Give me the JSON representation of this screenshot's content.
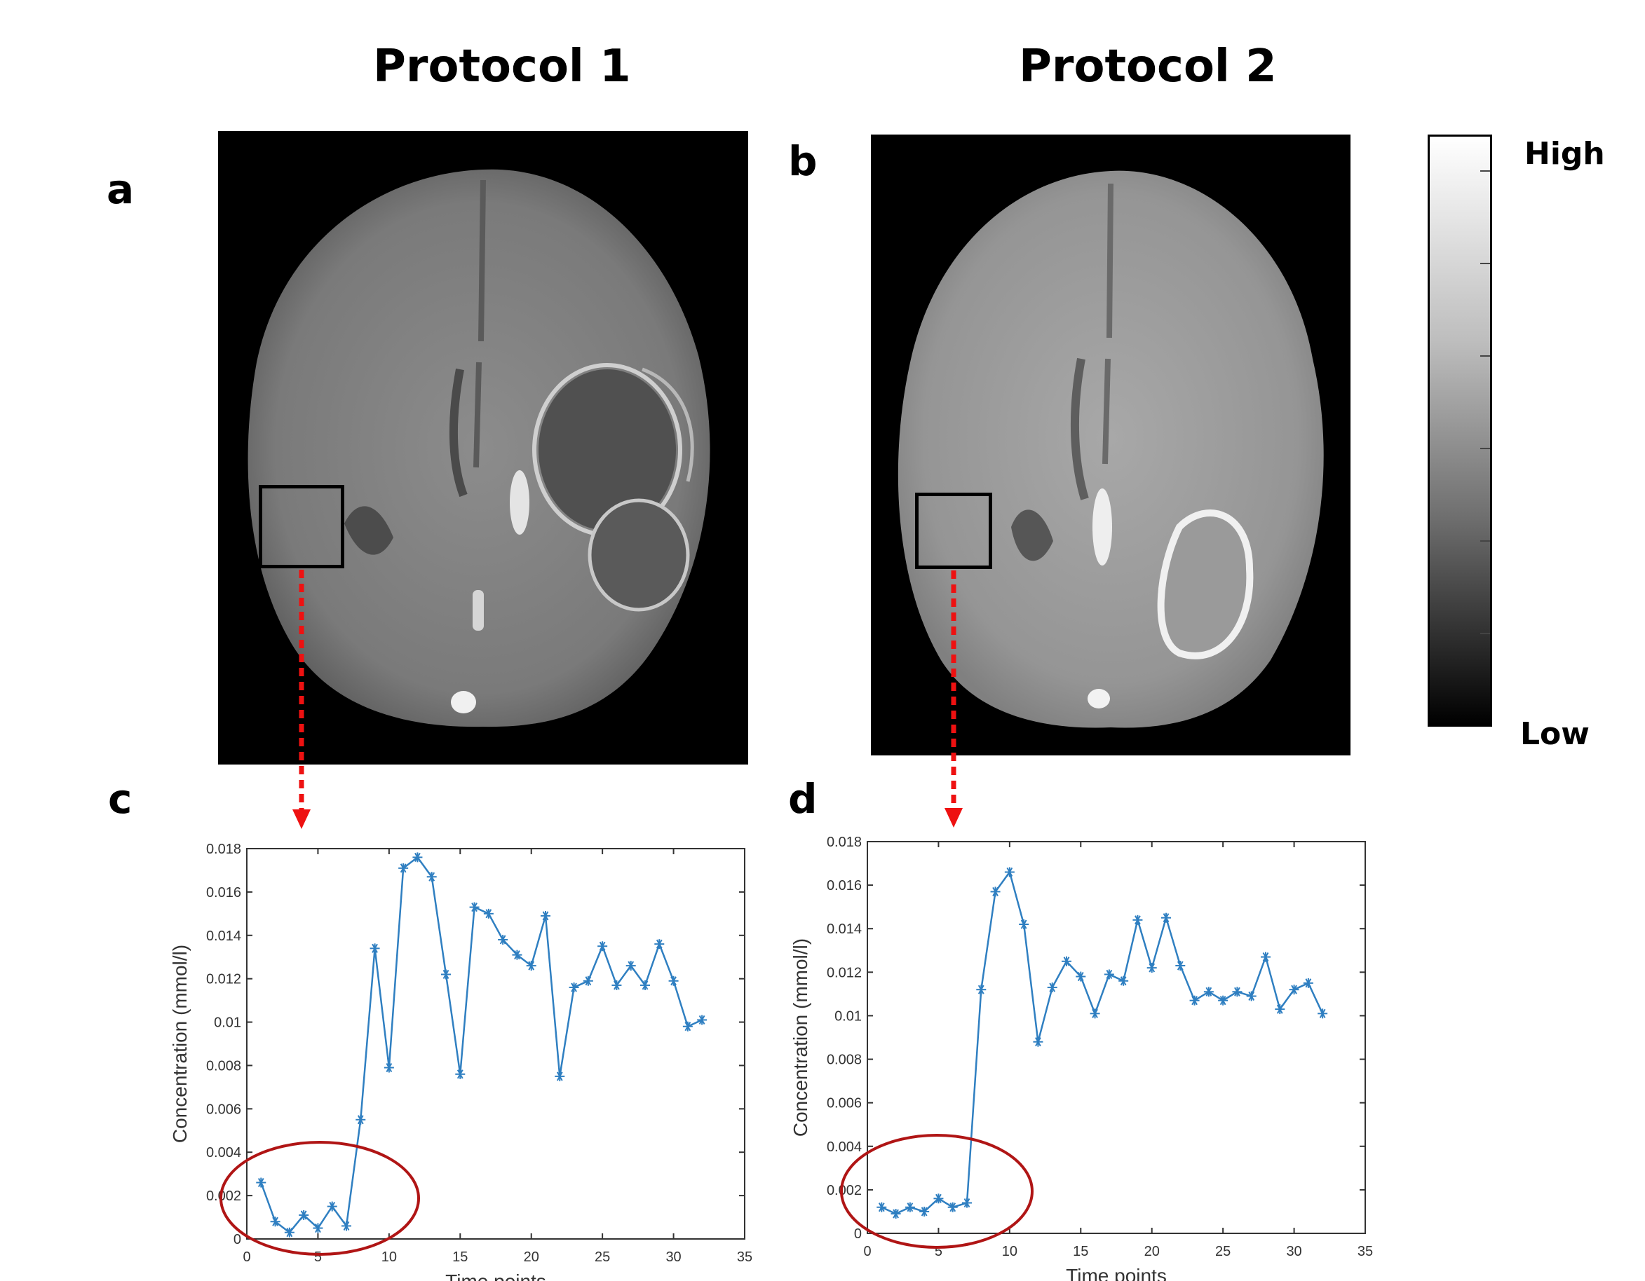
{
  "headings": {
    "protocol1": "Protocol 1",
    "protocol2": "Protocol 2"
  },
  "panels": {
    "a": "a",
    "b": "b",
    "c": "c",
    "d": "d"
  },
  "colorbar": {
    "high": "High",
    "low": "Low"
  },
  "colors": {
    "series": "#2f7fc1",
    "arrow": "#ee1111",
    "circle": "#b01515"
  },
  "chart_data": [
    {
      "type": "line",
      "panel": "c",
      "xlabel": "Time points",
      "ylabel": "Concentration (mmol/l)",
      "xlim": [
        0,
        35
      ],
      "ylim": [
        0,
        0.018
      ],
      "xticks": [
        "0",
        "5",
        "10",
        "15",
        "20",
        "25",
        "30",
        "35"
      ],
      "yticks": [
        "0",
        "0.002",
        "0.004",
        "0.006",
        "0.008",
        "0.01",
        "0.012",
        "0.014",
        "0.016",
        "0.018"
      ],
      "marker": "asterisk",
      "grid": false,
      "x": [
        1,
        2,
        3,
        4,
        5,
        6,
        7,
        8,
        9,
        10,
        11,
        12,
        13,
        14,
        15,
        16,
        17,
        18,
        19,
        20,
        21,
        22,
        23,
        24,
        25,
        26,
        27,
        28,
        29,
        30,
        31,
        32
      ],
      "y": [
        0.0026,
        0.0008,
        0.0003,
        0.0011,
        0.0005,
        0.0015,
        0.0006,
        0.0055,
        0.0134,
        0.0079,
        0.0171,
        0.0176,
        0.0167,
        0.0122,
        0.0076,
        0.0153,
        0.015,
        0.0138,
        0.0131,
        0.0126,
        0.0149,
        0.0075,
        0.0116,
        0.0119,
        0.0135,
        0.0117,
        0.0126,
        0.0117,
        0.0136,
        0.0119,
        0.0098,
        0.0101
      ]
    },
    {
      "type": "line",
      "panel": "d",
      "xlabel": "Time points",
      "ylabel": "Concentration (mmol/l)",
      "xlim": [
        0,
        35
      ],
      "ylim": [
        0,
        0.018
      ],
      "xticks": [
        "0",
        "5",
        "10",
        "15",
        "20",
        "25",
        "30",
        "35"
      ],
      "yticks": [
        "0",
        "0.002",
        "0.004",
        "0.006",
        "0.008",
        "0.01",
        "0.012",
        "0.014",
        "0.016",
        "0.018"
      ],
      "marker": "asterisk",
      "grid": false,
      "x": [
        1,
        2,
        3,
        4,
        5,
        6,
        7,
        8,
        9,
        10,
        11,
        12,
        13,
        14,
        15,
        16,
        17,
        18,
        19,
        20,
        21,
        22,
        23,
        24,
        25,
        26,
        27,
        28,
        29,
        30,
        31,
        32
      ],
      "y": [
        0.0012,
        0.0009,
        0.0012,
        0.001,
        0.0016,
        0.0012,
        0.0014,
        0.0112,
        0.0157,
        0.0166,
        0.0142,
        0.0088,
        0.0113,
        0.0125,
        0.0118,
        0.0101,
        0.0119,
        0.0116,
        0.0144,
        0.0122,
        0.0145,
        0.0123,
        0.0107,
        0.0111,
        0.0107,
        0.0111,
        0.0109,
        0.0127,
        0.0103,
        0.0112,
        0.0115,
        0.0101
      ]
    }
  ]
}
